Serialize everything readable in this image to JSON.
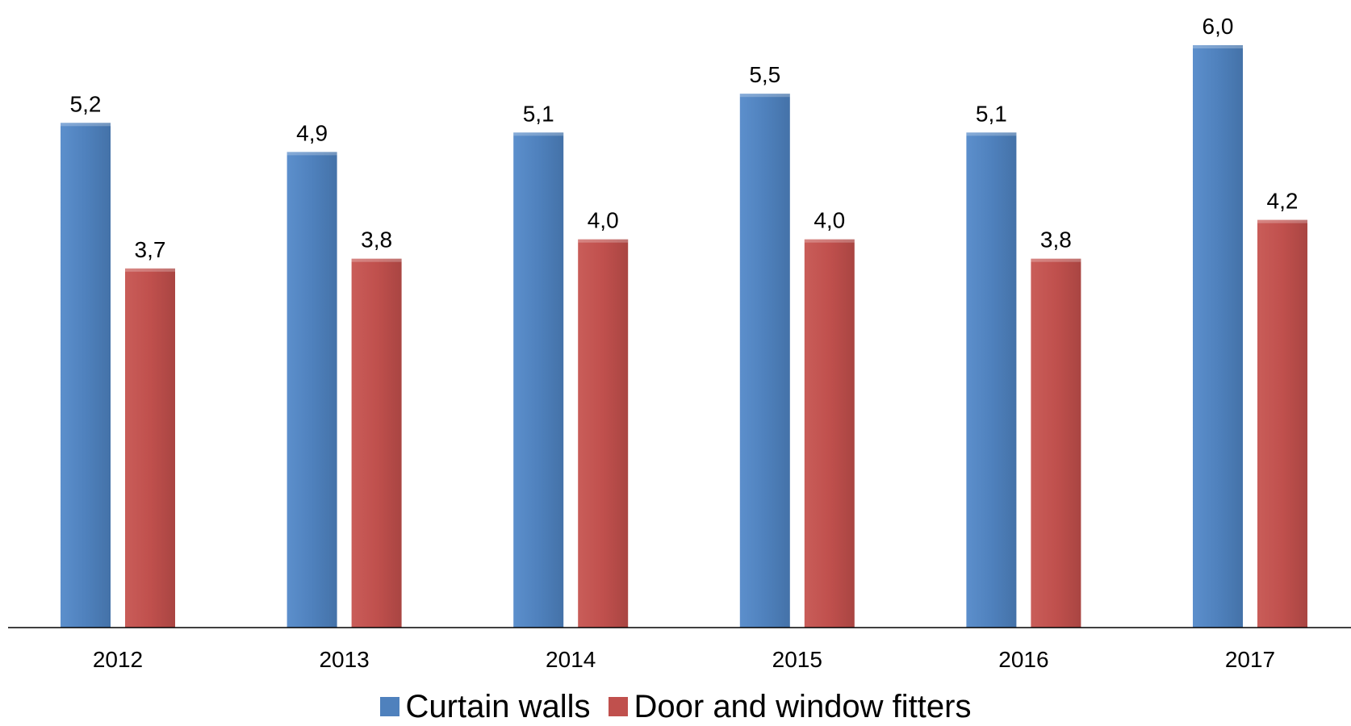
{
  "chart_data": {
    "type": "bar",
    "title": "",
    "xlabel": "",
    "ylabel": "",
    "categories": [
      "2012",
      "2013",
      "2014",
      "2015",
      "2016",
      "2017"
    ],
    "series": [
      {
        "name": "Curtain walls",
        "values": [
          5.2,
          4.9,
          5.1,
          5.5,
          5.1,
          6.0
        ],
        "labels": [
          "5,2",
          "4,9",
          "5,1",
          "5,5",
          "5,1",
          "6,0"
        ],
        "color": "#4F81BD"
      },
      {
        "name": "Door and window fitters",
        "values": [
          3.7,
          3.8,
          4.0,
          4.0,
          3.8,
          4.2
        ],
        "labels": [
          "3,7",
          "3,8",
          "4,0",
          "4,0",
          "3,8",
          "4,2"
        ],
        "color": "#C0504D"
      }
    ],
    "ylim": [
      0,
      6.0
    ],
    "grid": false,
    "y_axis_visible": false,
    "data_labels": true,
    "legend_position": "bottom"
  }
}
